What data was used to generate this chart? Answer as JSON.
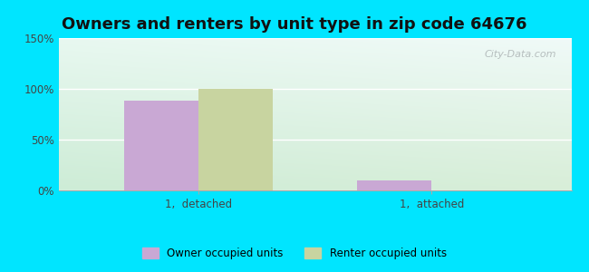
{
  "title": "Owners and renters by unit type in zip code 64676",
  "categories": [
    "1,  detached",
    "1,  attached"
  ],
  "owner_values": [
    88,
    10
  ],
  "renter_values": [
    100,
    0
  ],
  "owner_color": "#c9a8d4",
  "renter_color": "#c8d4a0",
  "owner_label": "Owner occupied units",
  "renter_label": "Renter occupied units",
  "ylim": [
    0,
    150
  ],
  "yticks": [
    0,
    50,
    100,
    150
  ],
  "ytick_labels": [
    "0%",
    "50%",
    "100%",
    "150%"
  ],
  "background_outer": "#00e5ff",
  "bar_width": 0.32,
  "title_fontsize": 13,
  "watermark": "City-Data.com"
}
